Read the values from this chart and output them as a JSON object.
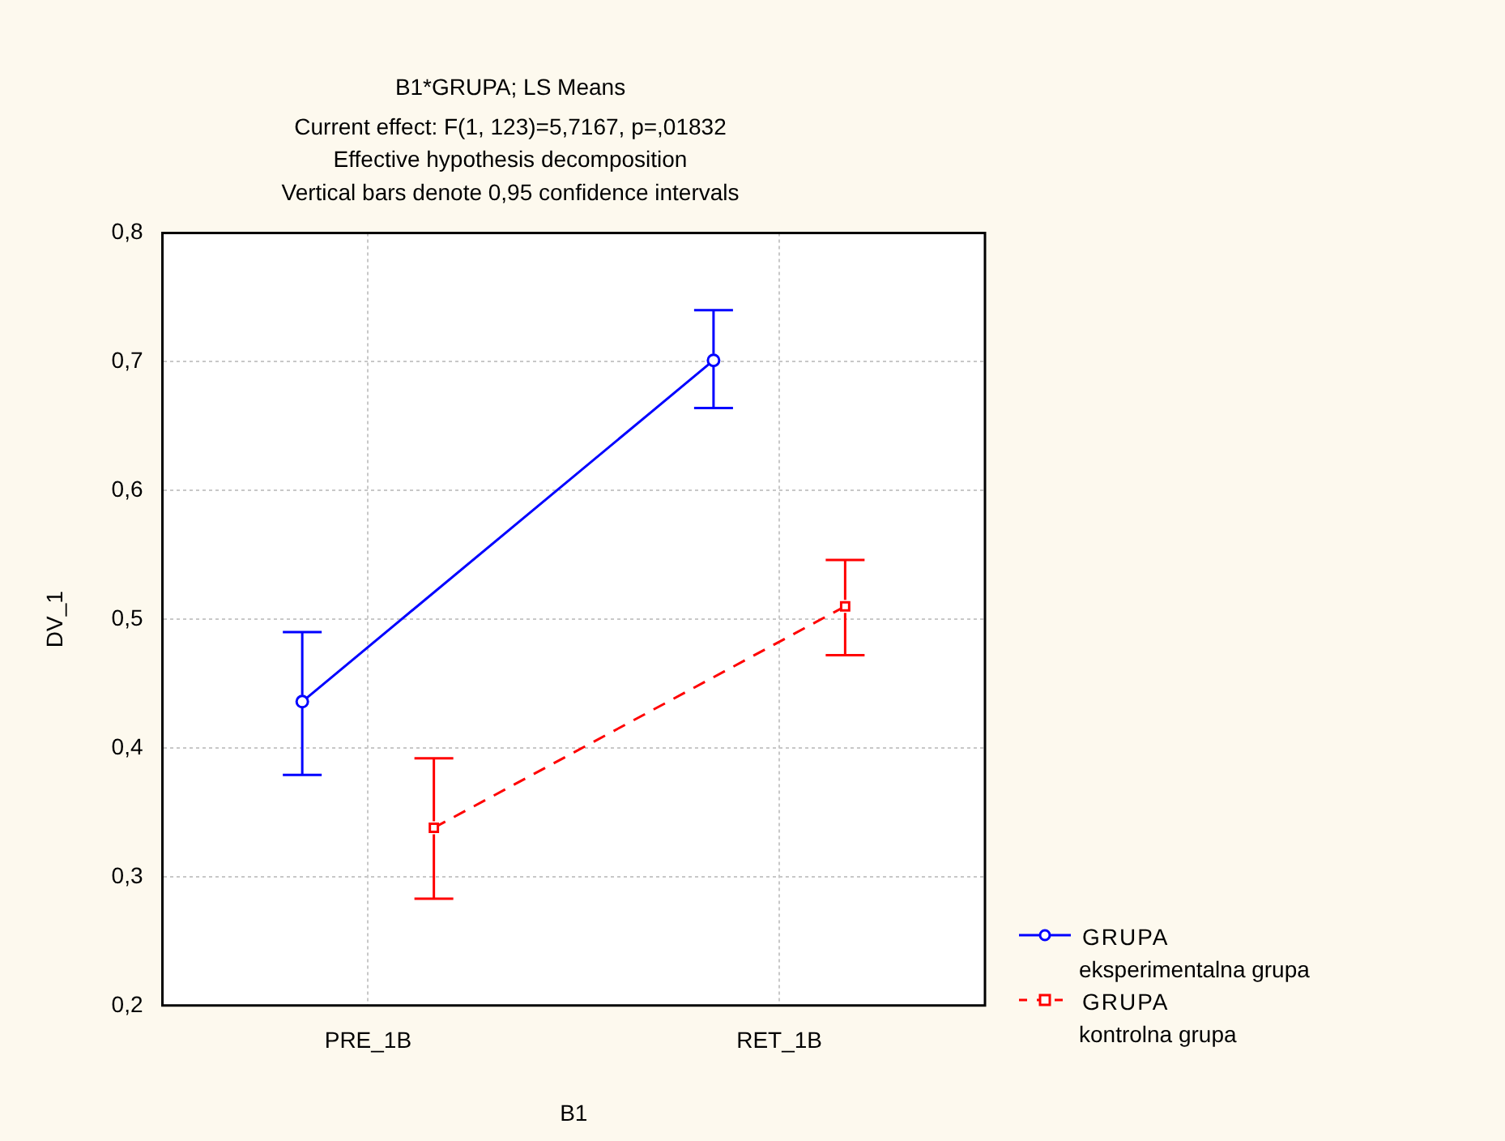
{
  "chart_data": {
    "type": "line",
    "title": "B1*GRUPA; LS Means",
    "subtitle": "Current effect: F(1, 123)=5,7167, p=,01832",
    "annotations": [
      "Effective hypothesis decomposition",
      "Vertical bars denote 0,95 confidence intervals"
    ],
    "xlabel": "B1",
    "ylabel": "DV_1",
    "categories": [
      "PRE_1B",
      "RET_1B"
    ],
    "series": [
      {
        "name": "GRUPA eksperimentalna grupa",
        "color": "#0000ff",
        "values": [
          0.436,
          0.701
        ],
        "errors": [
          [
            0.379,
            0.49
          ],
          [
            0.664,
            0.74
          ]
        ],
        "marker": "circle",
        "line_style": "solid"
      },
      {
        "name": "GRUPA kontrolna grupa",
        "color": "#ff0000",
        "values": [
          0.338,
          0.51
        ],
        "errors": [
          [
            0.283,
            0.392
          ],
          [
            0.472,
            0.546
          ]
        ],
        "marker": "square",
        "line_style": "dashed"
      }
    ],
    "ylim": [
      0.2,
      0.8
    ],
    "yticks": [
      {
        "value": 0.2,
        "label": "0,2"
      },
      {
        "value": 0.3,
        "label": "0,3"
      },
      {
        "value": 0.4,
        "label": "0,4"
      },
      {
        "value": 0.5,
        "label": "0,5"
      },
      {
        "value": 0.6,
        "label": "0,6"
      },
      {
        "value": 0.7,
        "label": "0,7"
      },
      {
        "value": 0.8,
        "label": "0,8"
      }
    ],
    "grid": true,
    "legend": "bottom right"
  }
}
